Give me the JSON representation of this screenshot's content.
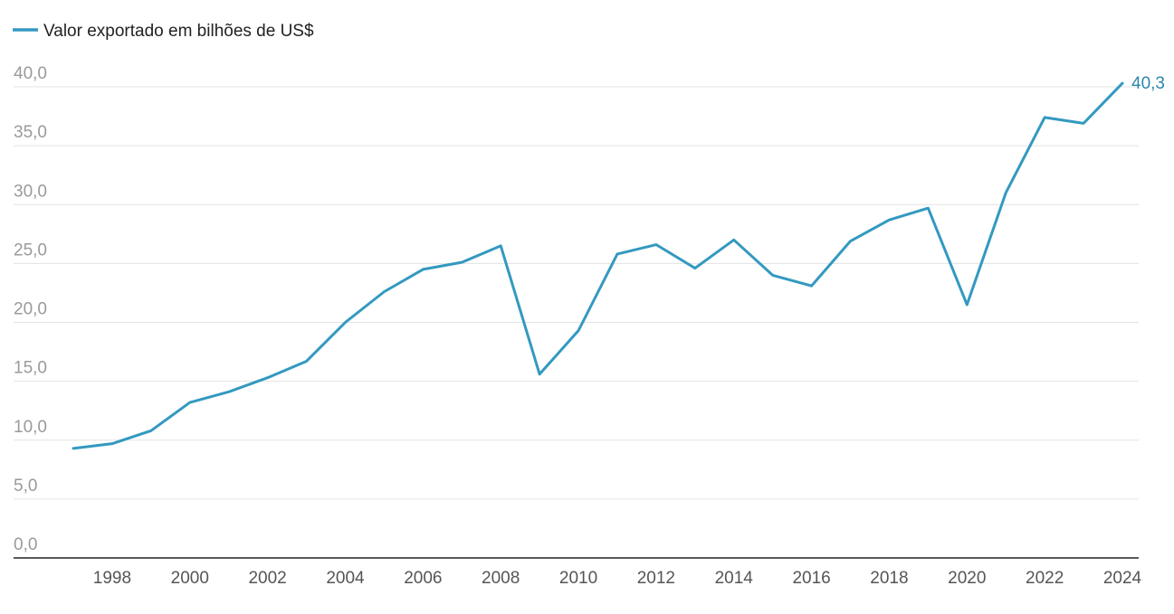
{
  "colors": {
    "series": "#3399c0",
    "end_label": "#2a86ad"
  },
  "legend": {
    "label": "Valor exportado em bilhões de US$"
  },
  "chart_data": {
    "type": "line",
    "title": "",
    "xlabel": "",
    "ylabel": "",
    "ylim": [
      0,
      40
    ],
    "yticks": [
      "0,0",
      "5,0",
      "10,0",
      "15,0",
      "20,0",
      "25,0",
      "30,0",
      "35,0",
      "40,0"
    ],
    "xlim": [
      1997,
      2024
    ],
    "xticks": [
      "1998",
      "2000",
      "2002",
      "2004",
      "2006",
      "2008",
      "2010",
      "2012",
      "2014",
      "2016",
      "2018",
      "2020",
      "2022",
      "2024"
    ],
    "grid": true,
    "legend_position": "top-left",
    "series": [
      {
        "name": "Valor exportado em bilhões de US$",
        "x": [
          1997,
          1998,
          1999,
          2000,
          2001,
          2002,
          2003,
          2004,
          2005,
          2006,
          2007,
          2008,
          2009,
          2010,
          2011,
          2012,
          2013,
          2014,
          2015,
          2016,
          2017,
          2018,
          2019,
          2020,
          2021,
          2022,
          2023,
          2024
        ],
        "y": [
          9.3,
          9.7,
          10.8,
          13.2,
          14.1,
          15.3,
          16.7,
          20.0,
          22.6,
          24.5,
          25.1,
          26.5,
          15.6,
          19.3,
          25.8,
          26.6,
          24.6,
          27.0,
          24.0,
          23.1,
          26.9,
          28.7,
          29.7,
          21.5,
          31.0,
          37.4,
          36.9,
          40.3
        ]
      }
    ],
    "annotations": [
      {
        "series": 0,
        "x": 2024,
        "text": "40,3"
      }
    ]
  }
}
